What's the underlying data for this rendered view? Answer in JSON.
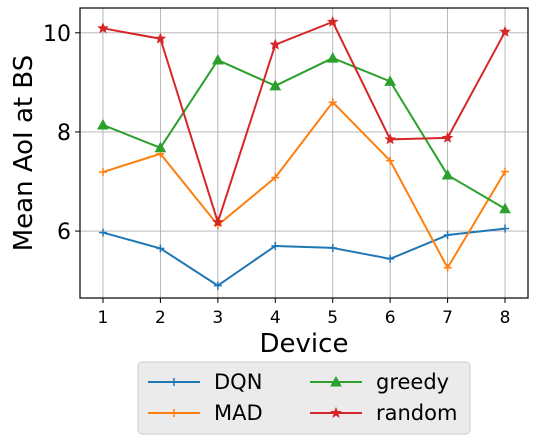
{
  "chart_data": {
    "type": "line",
    "title": "",
    "xlabel": "Device",
    "ylabel": "Mean AoI at BS",
    "x": [
      1,
      2,
      3,
      4,
      5,
      6,
      7,
      8
    ],
    "xticks": [
      "1",
      "2",
      "3",
      "4",
      "5",
      "6",
      "7",
      "8"
    ],
    "yticks": [
      "6",
      "8",
      "10"
    ],
    "xlim": [
      0.6,
      8.4
    ],
    "ylim": [
      4.65,
      10.5
    ],
    "grid": true,
    "legend_position": "bottom-outside",
    "series": [
      {
        "name": "DQN",
        "color": "#1f77b4",
        "marker": "plus",
        "values": [
          5.97,
          5.65,
          4.9,
          5.7,
          5.66,
          5.44,
          5.92,
          6.05
        ]
      },
      {
        "name": "MAD",
        "color": "#ff7f0e",
        "marker": "plus",
        "values": [
          7.19,
          7.56,
          6.12,
          7.08,
          8.6,
          7.42,
          5.26,
          7.2
        ]
      },
      {
        "name": "greedy",
        "color": "#2ca02c",
        "marker": "triangle",
        "values": [
          8.14,
          7.68,
          9.45,
          8.93,
          9.49,
          9.02,
          7.13,
          6.45
        ]
      },
      {
        "name": "random",
        "color": "#d62728",
        "marker": "star",
        "values": [
          10.09,
          9.88,
          6.18,
          9.76,
          10.22,
          7.85,
          7.88,
          10.02
        ]
      }
    ]
  }
}
